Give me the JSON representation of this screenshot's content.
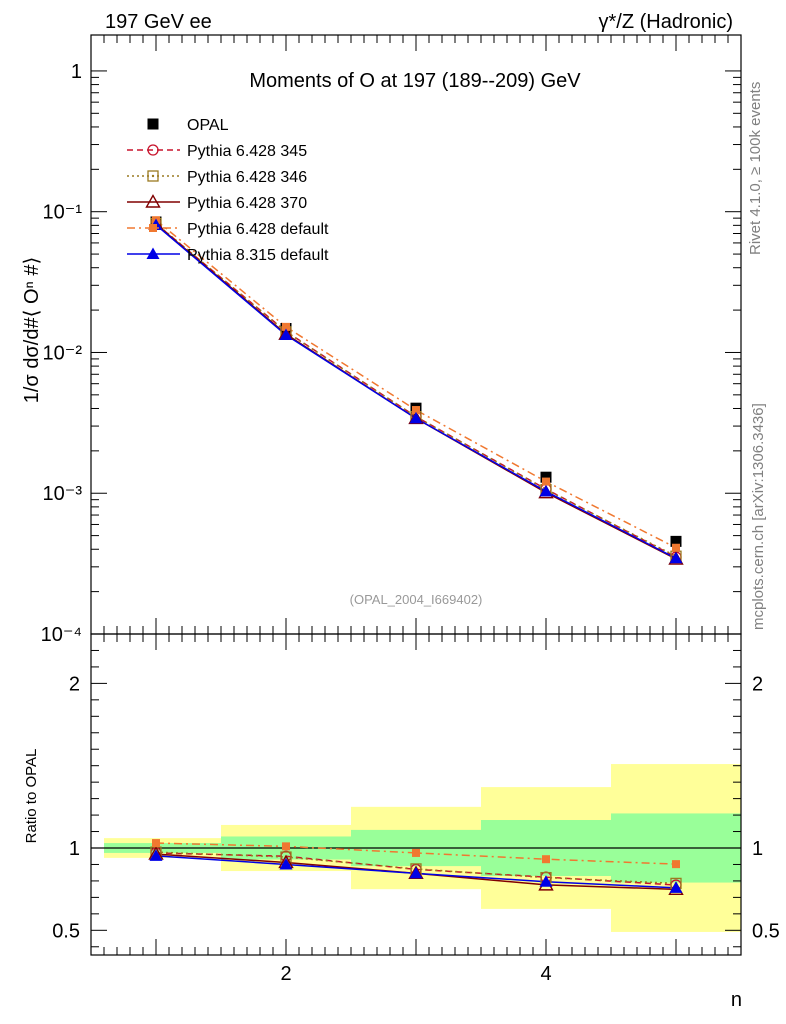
{
  "header": {
    "left": "197 GeV ee",
    "right": "γ*/Z (Hadronic)"
  },
  "side": {
    "rivet": "Rivet 4.1.0, ≥ 100k events",
    "mcplots": "mcplots.cern.ch [arXiv:1306.3436]"
  },
  "chart_data": [
    {
      "type": "line",
      "title": "Moments of O at 197 (189--209) GeV",
      "ylabel": "1/σ  dσ/d#⟨ Oⁿ #⟩",
      "xlabel": "n",
      "yscale": "log",
      "ylim": [
        0.0001,
        1.8
      ],
      "xlim": [
        0.5,
        5.5
      ],
      "ytick_labels": [
        "1",
        "10⁻¹",
        "10⁻²",
        "10⁻³",
        "10⁻⁴"
      ],
      "ytick_values": [
        1,
        0.1,
        0.01,
        0.001,
        0.0001
      ],
      "x": [
        1,
        2,
        3,
        4,
        5
      ],
      "watermark": "(OPAL_2004_I669402)",
      "legend_position": "top-left",
      "series": [
        {
          "name": "OPAL",
          "color": "#000000",
          "marker": "filled-square",
          "line": "none",
          "values": [
            0.0845,
            0.0148,
            0.00402,
            0.0013,
            0.000455
          ]
        },
        {
          "name": "Pythia 6.428 345",
          "color": "#c8142d",
          "marker": "open-circle",
          "line": "dashed",
          "values": [
            0.082,
            0.0141,
            0.0035,
            0.00107,
            0.000352
          ]
        },
        {
          "name": "Pythia 6.428 346",
          "color": "#9a7a20",
          "marker": "open-square",
          "line": "dotted",
          "values": [
            0.0825,
            0.014,
            0.0035,
            0.00106,
            0.000357
          ]
        },
        {
          "name": "Pythia 6.428 370",
          "color": "#800000",
          "marker": "open-triangle",
          "line": "solid",
          "values": [
            0.0815,
            0.0135,
            0.0034,
            0.00101,
            0.000341
          ]
        },
        {
          "name": "Pythia 6.428 default",
          "color": "#f07830",
          "marker": "filled-square-small",
          "line": "dashdot",
          "values": [
            0.087,
            0.0152,
            0.0039,
            0.00121,
            0.00041
          ]
        },
        {
          "name": "Pythia 8.315 default",
          "color": "#0000e6",
          "marker": "filled-triangle",
          "line": "solid",
          "values": [
            0.0805,
            0.0133,
            0.0034,
            0.00103,
            0.000345
          ]
        }
      ]
    },
    {
      "type": "line",
      "title": "",
      "ylabel": "Ratio to OPAL",
      "xlabel": "n",
      "yscale": "linear",
      "ylim": [
        0.35,
        2.3
      ],
      "xlim": [
        0.5,
        5.5
      ],
      "ytick_labels": [
        "0.5",
        "1",
        "2"
      ],
      "ytick_values": [
        0.5,
        1,
        2
      ],
      "xtick_labels": [
        "2",
        "4"
      ],
      "xtick_values": [
        2,
        4
      ],
      "x": [
        1,
        2,
        3,
        4,
        5
      ],
      "bands": {
        "bin_edges": [
          0.6,
          1.5,
          2.5,
          3.5,
          4.5,
          5.5
        ],
        "yellow": [
          [
            0.94,
            1.06
          ],
          [
            0.86,
            1.14
          ],
          [
            0.75,
            1.25
          ],
          [
            0.63,
            1.37
          ],
          [
            0.49,
            1.51
          ]
        ],
        "green": [
          [
            0.97,
            1.03
          ],
          [
            0.93,
            1.07
          ],
          [
            0.89,
            1.11
          ],
          [
            0.83,
            1.17
          ],
          [
            0.79,
            1.21
          ]
        ]
      },
      "series": [
        {
          "name": "Pythia 6.428 345",
          "values": [
            0.97,
            0.95,
            0.87,
            0.823,
            0.775
          ]
        },
        {
          "name": "Pythia 6.428 346",
          "values": [
            0.975,
            0.945,
            0.873,
            0.82,
            0.785
          ]
        },
        {
          "name": "Pythia 6.428 370",
          "values": [
            0.963,
            0.912,
            0.846,
            0.776,
            0.749
          ]
        },
        {
          "name": "Pythia 6.428 default",
          "values": [
            1.03,
            1.01,
            0.97,
            0.932,
            0.902
          ]
        },
        {
          "name": "Pythia 8.315 default",
          "values": [
            0.952,
            0.9,
            0.846,
            0.795,
            0.758
          ]
        }
      ]
    }
  ]
}
